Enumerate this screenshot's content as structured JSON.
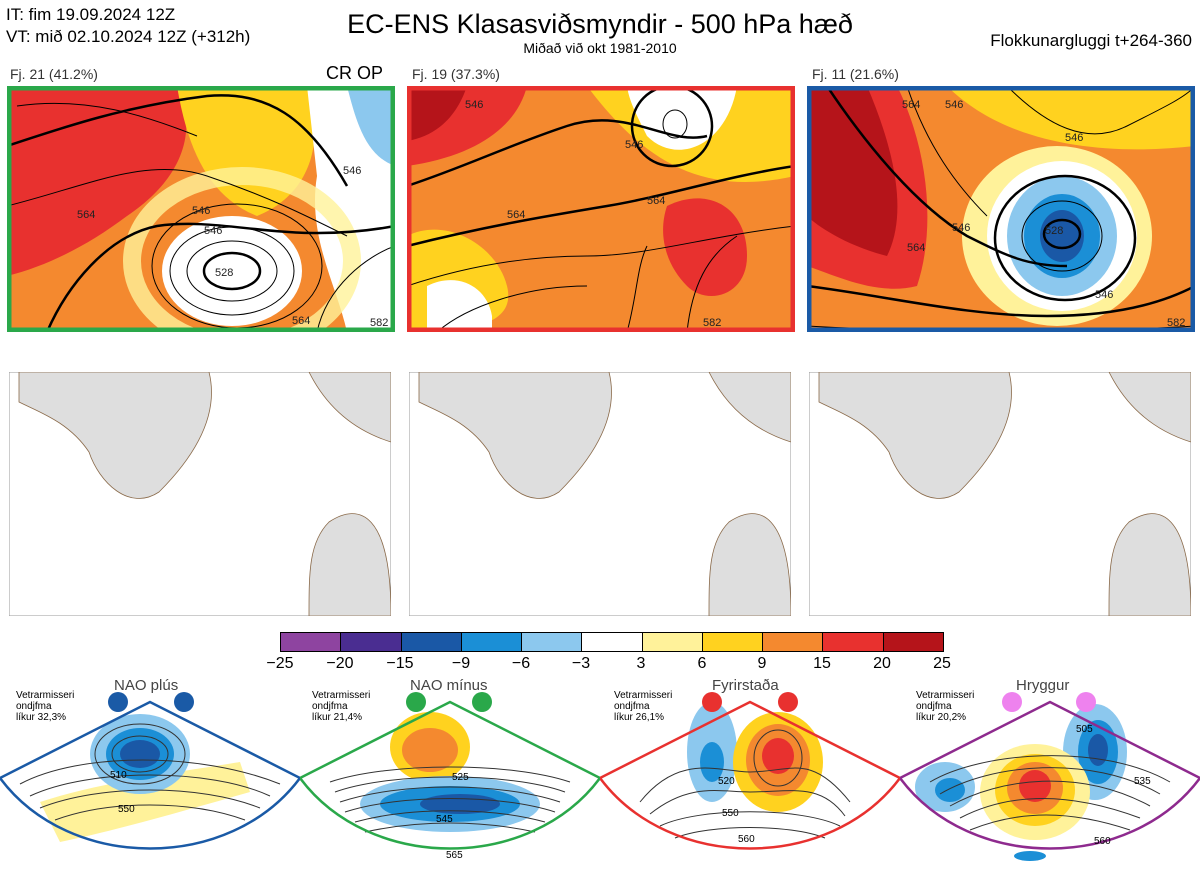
{
  "header": {
    "it": "IT: fim 19.09.2024 12Z",
    "vt": "VT: mið 02.10.2024 12Z  (+312h)",
    "title": "EC-ENS Klasasviðsmyndir - 500 hPa hæð",
    "subtitle": "Miðað við okt 1981-2010",
    "window": "Flokkunargluggi t+264-360"
  },
  "clusters": [
    {
      "label": "Fj. 21 (41.2%)",
      "extra": "CR OP",
      "border": "#2aa84a",
      "contours": [
        "546",
        "564",
        "546",
        "528",
        "564",
        "582",
        "546"
      ]
    },
    {
      "label": "Fj. 19 (37.3%)",
      "extra": "",
      "border": "#e8312f",
      "contours": [
        "546",
        "546",
        "564",
        "564",
        "582"
      ]
    },
    {
      "label": "Fj. 11 (21.6%)",
      "extra": "",
      "border": "#1a5aa6",
      "contours": [
        "564",
        "546",
        "546",
        "546",
        "528",
        "564",
        "546",
        "582"
      ]
    }
  ],
  "colorbar": {
    "colors": [
      "#8e44a0",
      "#4a2d91",
      "#1a58a6",
      "#1b8fd6",
      "#8cc8ee",
      "#ffffff",
      "#fff29a",
      "#ffd21f",
      "#f4892f",
      "#e8312f",
      "#b5141a"
    ],
    "ticks": [
      "−25",
      "−20",
      "−15",
      "−9",
      "−6",
      "−3",
      "3",
      "6",
      "9",
      "15",
      "20",
      "25"
    ]
  },
  "regimes": [
    {
      "name": "NAO plús",
      "info1": "Vetrarmisseri",
      "info2": "ondjfma",
      "info3": "líkur 32,3%",
      "color": "#1a5aa6",
      "dot": "#1a5aa6",
      "labels": [
        "510",
        "550"
      ]
    },
    {
      "name": "NAO mínus",
      "info1": "Vetrarmisseri",
      "info2": "ondjfma",
      "info3": "líkur 21,4%",
      "color": "#2aa84a",
      "dot": "#2aa84a",
      "labels": [
        "525",
        "545",
        "565"
      ]
    },
    {
      "name": "Fyrirstaða",
      "info1": "Vetrarmisseri",
      "info2": "ondjfma",
      "info3": "líkur 26,1%",
      "color": "#e8312f",
      "dot": "#e8312f",
      "labels": [
        "520",
        "550",
        "560"
      ]
    },
    {
      "name": "Hryggur",
      "info1": "Vetrarmisseri",
      "info2": "ondjfma",
      "info3": "líkur 20,2%",
      "color": "#8e2a8e",
      "dot": "#ee82ee",
      "labels": [
        "505",
        "535",
        "560"
      ]
    }
  ]
}
